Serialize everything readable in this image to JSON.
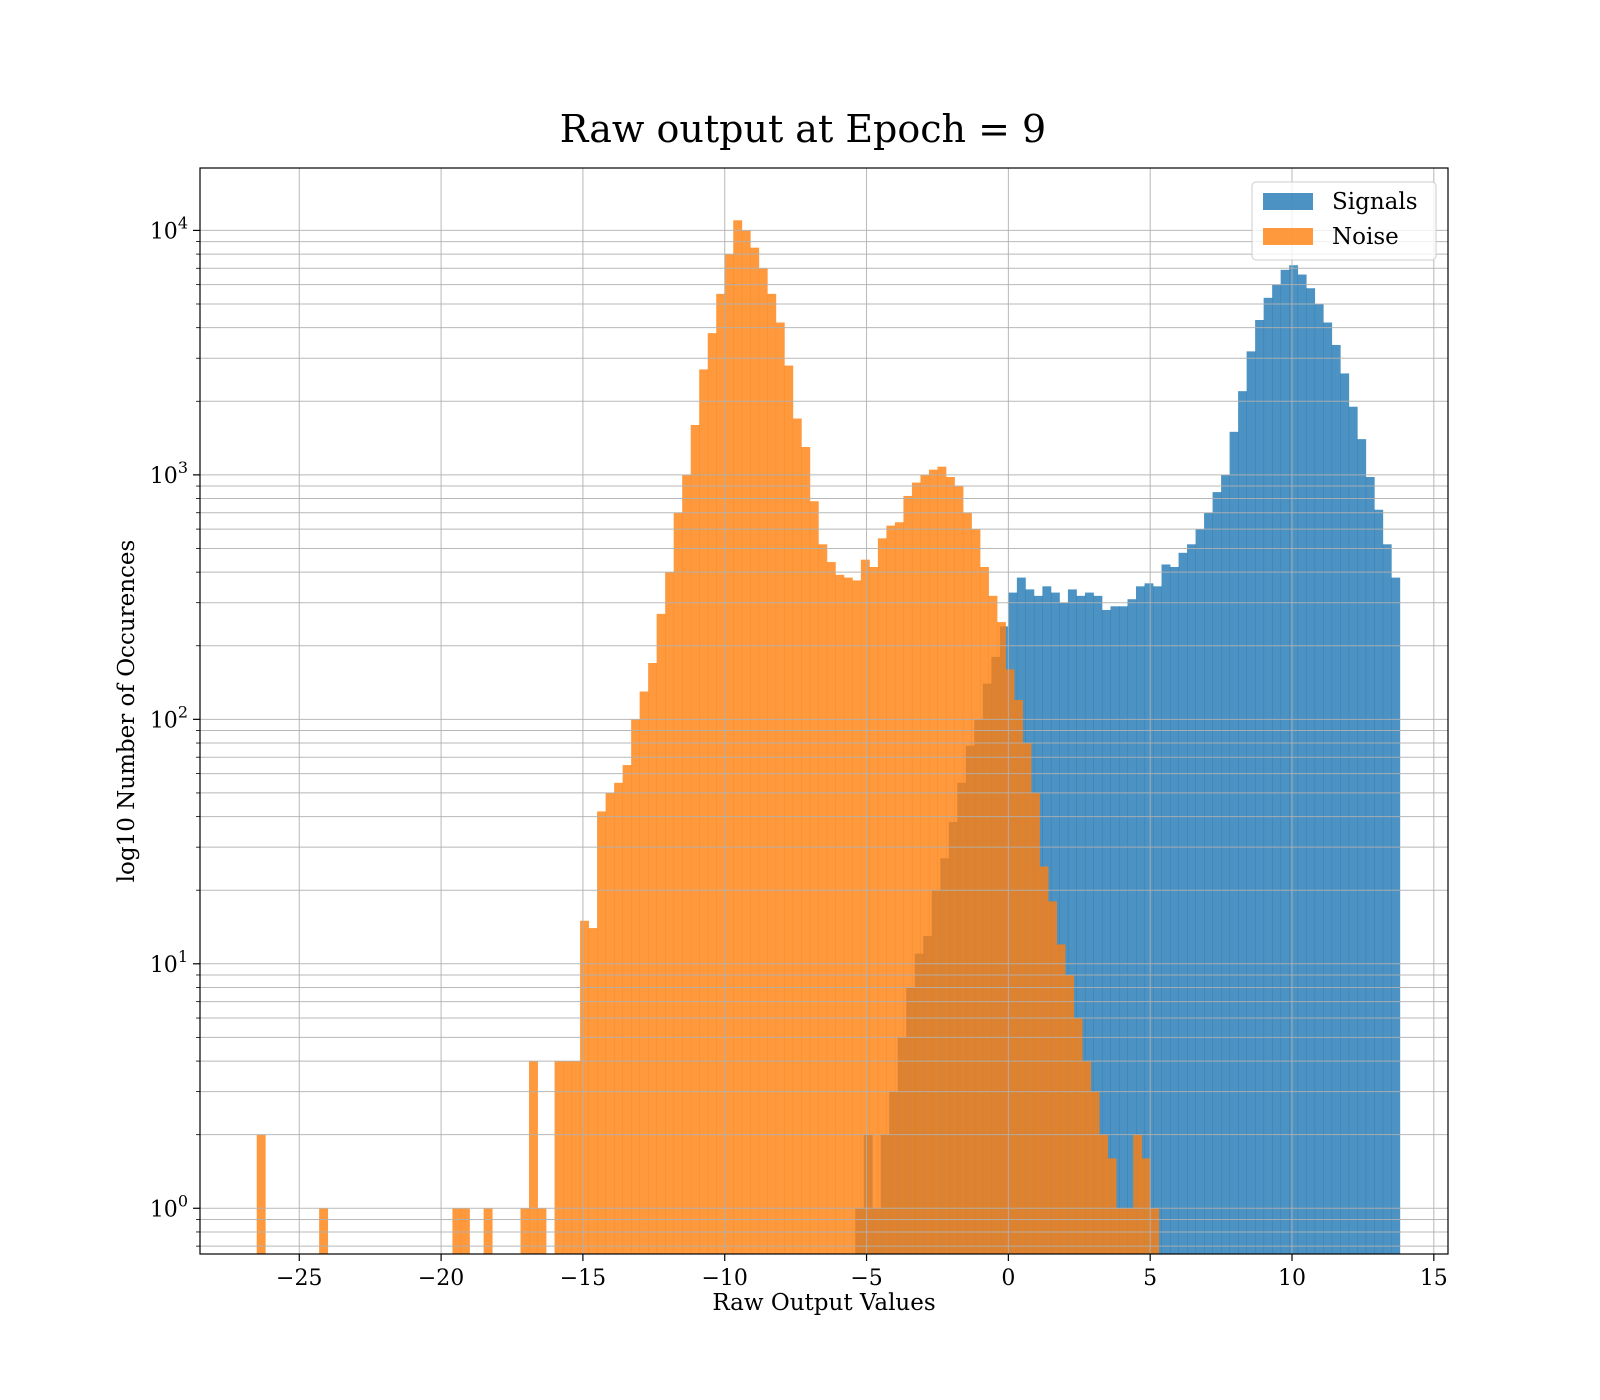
{
  "chart_data": {
    "type": "bar",
    "histogram": true,
    "title": "Raw output at Epoch = 9",
    "xlabel": "Raw Output Values",
    "ylabel": "log10 Number of Occurences",
    "xlim": [
      -28.5,
      15.5
    ],
    "ylim": [
      0.65,
      18000
    ],
    "yscale": "log",
    "grid": true,
    "legend_position": "top-right",
    "x_ticks": [
      -25,
      -20,
      -15,
      -10,
      -5,
      0,
      5,
      10,
      15
    ],
    "x_tick_labels": [
      "−25",
      "−20",
      "−15",
      "−10",
      "−5",
      "0",
      "5",
      "10",
      "15"
    ],
    "y_ticks": [
      {
        "value": 1,
        "base": "10",
        "exp": "0"
      },
      {
        "value": 10,
        "base": "10",
        "exp": "1"
      },
      {
        "value": 100,
        "base": "10",
        "exp": "2"
      },
      {
        "value": 1000,
        "base": "10",
        "exp": "3"
      },
      {
        "value": 10000,
        "base": "10",
        "exp": "4"
      }
    ],
    "series": [
      {
        "name": "Signals",
        "color": "#1f77b4",
        "opacity": 0.8,
        "bins": [
          [
            -5.4,
            -5.1,
            1
          ],
          [
            -5.1,
            -4.8,
            2
          ],
          [
            -4.8,
            -4.5,
            1
          ],
          [
            -4.5,
            -4.2,
            2
          ],
          [
            -4.2,
            -3.9,
            3
          ],
          [
            -3.9,
            -3.6,
            5
          ],
          [
            -3.6,
            -3.3,
            8
          ],
          [
            -3.3,
            -3.0,
            11
          ],
          [
            -3.0,
            -2.7,
            13
          ],
          [
            -2.7,
            -2.4,
            20
          ],
          [
            -2.4,
            -2.1,
            27
          ],
          [
            -2.1,
            -1.8,
            38
          ],
          [
            -1.8,
            -1.5,
            55
          ],
          [
            -1.5,
            -1.2,
            78
          ],
          [
            -1.2,
            -0.9,
            100
          ],
          [
            -0.9,
            -0.6,
            140
          ],
          [
            -0.6,
            -0.3,
            180
          ],
          [
            -0.3,
            0.0,
            240
          ],
          [
            0.0,
            0.3,
            330
          ],
          [
            0.3,
            0.6,
            380
          ],
          [
            0.6,
            0.9,
            340
          ],
          [
            0.9,
            1.2,
            320
          ],
          [
            1.2,
            1.5,
            350
          ],
          [
            1.5,
            1.8,
            330
          ],
          [
            1.8,
            2.1,
            300
          ],
          [
            2.1,
            2.4,
            340
          ],
          [
            2.4,
            2.7,
            320
          ],
          [
            2.7,
            3.0,
            330
          ],
          [
            3.0,
            3.3,
            320
          ],
          [
            3.3,
            3.6,
            280
          ],
          [
            3.6,
            3.9,
            290
          ],
          [
            3.9,
            4.2,
            290
          ],
          [
            4.2,
            4.5,
            310
          ],
          [
            4.5,
            4.8,
            350
          ],
          [
            4.8,
            5.1,
            360
          ],
          [
            5.1,
            5.4,
            350
          ],
          [
            5.4,
            5.7,
            430
          ],
          [
            5.7,
            6.0,
            420
          ],
          [
            6.0,
            6.3,
            480
          ],
          [
            6.3,
            6.6,
            520
          ],
          [
            6.6,
            6.9,
            600
          ],
          [
            6.9,
            7.2,
            700
          ],
          [
            7.2,
            7.5,
            850
          ],
          [
            7.5,
            7.8,
            1000
          ],
          [
            7.8,
            8.1,
            1500
          ],
          [
            8.1,
            8.4,
            2200
          ],
          [
            8.4,
            8.7,
            3200
          ],
          [
            8.7,
            9.0,
            4300
          ],
          [
            9.0,
            9.3,
            5300
          ],
          [
            9.3,
            9.6,
            6000
          ],
          [
            9.6,
            9.9,
            6900
          ],
          [
            9.9,
            10.2,
            7200
          ],
          [
            10.2,
            10.5,
            6600
          ],
          [
            10.5,
            10.8,
            5800
          ],
          [
            10.8,
            11.1,
            5000
          ],
          [
            11.1,
            11.4,
            4200
          ],
          [
            11.4,
            11.7,
            3400
          ],
          [
            11.7,
            12.0,
            2600
          ],
          [
            12.0,
            12.3,
            1900
          ],
          [
            12.3,
            12.6,
            1400
          ],
          [
            12.6,
            12.9,
            980
          ],
          [
            12.9,
            13.2,
            720
          ],
          [
            13.2,
            13.5,
            520
          ],
          [
            13.5,
            13.8,
            380
          ]
        ]
      },
      {
        "name": "Noise",
        "color": "#ff7f0e",
        "opacity": 0.8,
        "bins": [
          [
            -26.5,
            -26.2,
            2
          ],
          [
            -24.3,
            -24.0,
            1
          ],
          [
            -19.6,
            -19.3,
            1
          ],
          [
            -19.3,
            -19.0,
            1
          ],
          [
            -18.5,
            -18.2,
            1
          ],
          [
            -17.2,
            -16.9,
            1
          ],
          [
            -16.9,
            -16.6,
            4
          ],
          [
            -16.6,
            -16.3,
            1
          ],
          [
            -16.0,
            -15.7,
            4
          ],
          [
            -15.7,
            -15.4,
            4
          ],
          [
            -15.4,
            -15.1,
            4
          ],
          [
            -15.1,
            -14.8,
            15
          ],
          [
            -14.8,
            -14.5,
            14
          ],
          [
            -14.5,
            -14.2,
            42
          ],
          [
            -14.2,
            -13.9,
            50
          ],
          [
            -13.9,
            -13.6,
            55
          ],
          [
            -13.6,
            -13.3,
            65
          ],
          [
            -13.3,
            -13.0,
            100
          ],
          [
            -13.0,
            -12.7,
            130
          ],
          [
            -12.7,
            -12.4,
            170
          ],
          [
            -12.4,
            -12.1,
            270
          ],
          [
            -12.1,
            -11.8,
            400
          ],
          [
            -11.8,
            -11.5,
            700
          ],
          [
            -11.5,
            -11.2,
            1000
          ],
          [
            -11.2,
            -10.9,
            1600
          ],
          [
            -10.9,
            -10.6,
            2700
          ],
          [
            -10.6,
            -10.3,
            3800
          ],
          [
            -10.3,
            -10.0,
            5500
          ],
          [
            -10.0,
            -9.7,
            8000
          ],
          [
            -9.7,
            -9.4,
            11000
          ],
          [
            -9.4,
            -9.1,
            10000
          ],
          [
            -9.1,
            -8.8,
            8500
          ],
          [
            -8.8,
            -8.5,
            7000
          ],
          [
            -8.5,
            -8.2,
            5500
          ],
          [
            -8.2,
            -7.9,
            4200
          ],
          [
            -7.9,
            -7.6,
            2800
          ],
          [
            -7.6,
            -7.3,
            1700
          ],
          [
            -7.3,
            -7.0,
            1300
          ],
          [
            -7.0,
            -6.7,
            780
          ],
          [
            -6.7,
            -6.4,
            520
          ],
          [
            -6.4,
            -6.1,
            440
          ],
          [
            -6.1,
            -5.8,
            390
          ],
          [
            -5.8,
            -5.5,
            380
          ],
          [
            -5.5,
            -5.2,
            370
          ],
          [
            -5.2,
            -4.9,
            450
          ],
          [
            -4.9,
            -4.6,
            420
          ],
          [
            -4.6,
            -4.3,
            550
          ],
          [
            -4.3,
            -4.0,
            620
          ],
          [
            -4.0,
            -3.7,
            640
          ],
          [
            -3.7,
            -3.4,
            820
          ],
          [
            -3.4,
            -3.1,
            930
          ],
          [
            -3.1,
            -2.8,
            1000
          ],
          [
            -2.8,
            -2.5,
            1050
          ],
          [
            -2.5,
            -2.2,
            1080
          ],
          [
            -2.2,
            -1.9,
            980
          ],
          [
            -1.9,
            -1.6,
            900
          ],
          [
            -1.6,
            -1.3,
            700
          ],
          [
            -1.3,
            -1.0,
            600
          ],
          [
            -1.0,
            -0.7,
            420
          ],
          [
            -0.7,
            -0.4,
            320
          ],
          [
            -0.4,
            -0.1,
            250
          ],
          [
            -0.1,
            0.2,
            160
          ],
          [
            0.2,
            0.5,
            120
          ],
          [
            0.5,
            0.8,
            80
          ],
          [
            0.8,
            1.1,
            50
          ],
          [
            1.1,
            1.4,
            25
          ],
          [
            1.4,
            1.7,
            18
          ],
          [
            1.7,
            2.0,
            12
          ],
          [
            2.0,
            2.3,
            9
          ],
          [
            2.3,
            2.6,
            6
          ],
          [
            2.6,
            2.9,
            4
          ],
          [
            2.9,
            3.2,
            3
          ],
          [
            3.2,
            3.5,
            2
          ],
          [
            3.5,
            3.8,
            1.6
          ],
          [
            3.8,
            4.1,
            1
          ],
          [
            4.1,
            4.4,
            1
          ],
          [
            4.4,
            4.7,
            2
          ],
          [
            4.7,
            5.0,
            1.6
          ],
          [
            5.0,
            5.3,
            1
          ]
        ]
      }
    ]
  }
}
